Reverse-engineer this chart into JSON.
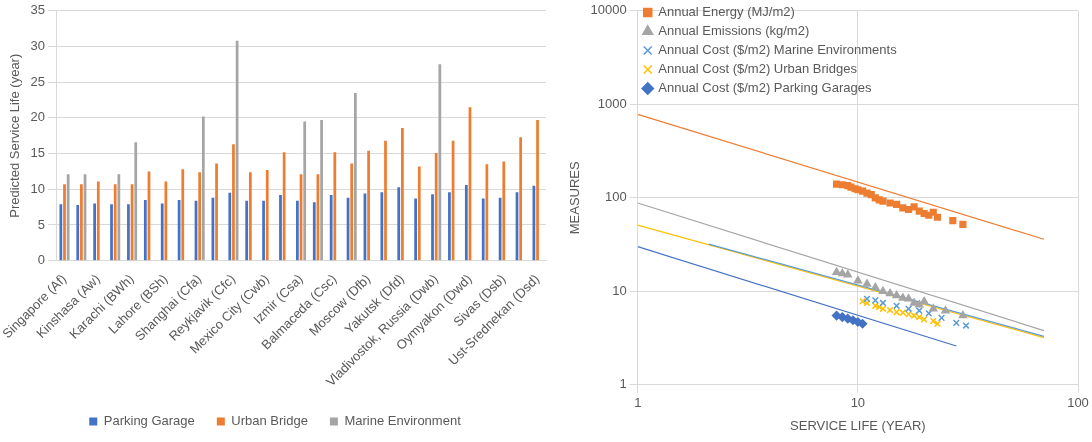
{
  "chart_data": [
    {
      "type": "bar",
      "ylabel": "Predicted Service Life (year)",
      "categories": [
        "Singapore (Af)",
        null,
        "Kinshasa (Aw)",
        null,
        "Karachi (BWh)",
        null,
        "Lahore (BSh)",
        null,
        "Shanghai (Cfa)",
        null,
        "Reykjavik (Cfc)",
        null,
        "Mexico City (Cwb)",
        null,
        "Izmir (Csa)",
        null,
        "Balmaceda (Csc)",
        null,
        "Moscow (Dfb)",
        null,
        "Yakutsk (Dfd)",
        null,
        "Vladivostok, Russia (Dwb)",
        null,
        "Oymyakon (Dwd)",
        null,
        "Sivas (Dsb)",
        null,
        "Ust-Srednekan (Dsd)"
      ],
      "series": [
        {
          "name": "Parking Garage",
          "color": "#4472c4",
          "values": [
            7.9,
            7.8,
            8.0,
            7.9,
            7.9,
            8.5,
            8.0,
            8.5,
            8.4,
            8.8,
            9.5,
            8.4,
            8.4,
            9.2,
            8.4,
            8.2,
            9.2,
            8.8,
            9.4,
            9.6,
            10.3,
            8.7,
            9.3,
            9.6,
            10.6,
            8.7,
            8.8,
            9.6,
            10.5
          ]
        },
        {
          "name": "Urban Bridge",
          "color": "#ed7d31",
          "values": [
            10.7,
            10.7,
            11.1,
            10.7,
            10.7,
            12.5,
            11.1,
            12.8,
            12.4,
            13.6,
            16.3,
            12.4,
            12.7,
            15.2,
            12.1,
            12.1,
            15.2,
            13.6,
            15.4,
            16.8,
            18.6,
            13.2,
            15.1,
            16.8,
            21.5,
            13.5,
            13.9,
            17.3,
            19.7
          ]
        },
        {
          "name": "Marine Environment",
          "color": "#a5a5a5",
          "values": [
            12.1,
            12.1,
            null,
            12.1,
            16.6,
            null,
            null,
            null,
            20.2,
            null,
            30.8,
            null,
            null,
            null,
            19.5,
            19.7,
            null,
            23.5,
            null,
            null,
            null,
            null,
            27.5,
            null,
            null,
            null,
            null,
            null,
            null
          ]
        }
      ],
      "ylim": [
        0,
        35
      ],
      "yticks": [
        0,
        5,
        10,
        15,
        20,
        25,
        30,
        35
      ],
      "grid": "y",
      "legend": "bottom"
    },
    {
      "type": "scatter",
      "xlabel": "SERVICE LIFE (YEAR)",
      "ylabel": "MEASURES",
      "log": "xy",
      "xlim": [
        1,
        100
      ],
      "xticks": [
        1,
        10,
        100
      ],
      "ylim": [
        1,
        10000
      ],
      "yticks": [
        1,
        10,
        100,
        1000,
        10000
      ],
      "grid": true,
      "legend": "top left",
      "series": [
        {
          "name": "Annual Energy (MJ/m2)",
          "color": "#ed7d31",
          "marker": "square",
          "x": [
            8,
            8.5,
            9,
            9.3,
            9.7,
            10,
            10.5,
            11,
            11.5,
            12,
            12.5,
            13,
            14,
            15,
            16,
            17,
            18,
            19,
            20,
            21,
            22,
            23,
            27,
            30
          ],
          "values": [
            140,
            138,
            135,
            130,
            125,
            122,
            118,
            112,
            108,
            100,
            95,
            92,
            88,
            85,
            78,
            75,
            80,
            72,
            68,
            65,
            70,
            62,
            57,
            52
          ]
        },
        {
          "name": "Annual Emissions (kg/m2)",
          "color": "#a5a5a5",
          "marker": "triangle",
          "x": [
            8,
            8.5,
            9,
            10,
            11,
            12,
            13,
            14,
            15,
            16,
            17,
            18,
            19,
            20,
            22,
            25,
            30
          ],
          "values": [
            16,
            15.5,
            15,
            13,
            12,
            11,
            10,
            9.5,
            9,
            8.5,
            8.3,
            7.5,
            7.2,
            7.8,
            6.5,
            6.2,
            5.5
          ]
        },
        {
          "name": "Annual Cost ($/m2) Marine Environments",
          "color": "#5b9bd5",
          "marker": "cross",
          "x": [
            11,
            12,
            13,
            15,
            17,
            19,
            21,
            24,
            28,
            31
          ],
          "values": [
            8.3,
            8,
            7.5,
            7,
            6.5,
            6.2,
            5.8,
            5.2,
            4.6,
            4.3
          ]
        },
        {
          "name": "Annual Cost ($/m2) Urban Bridges",
          "color": "#ffc000",
          "marker": "cross",
          "x": [
            10.5,
            11,
            12,
            12.5,
            13,
            14,
            15,
            16,
            17,
            18,
            19,
            20,
            22,
            23
          ],
          "values": [
            7.8,
            7.5,
            7,
            6.8,
            6.5,
            6.3,
            6,
            5.9,
            5.7,
            5.5,
            5.3,
            5,
            4.8,
            4.5
          ]
        },
        {
          "name": "Annual Cost ($/m2) Parking Garages",
          "color": "#4472c4",
          "marker": "diamond",
          "x": [
            8,
            8.5,
            9,
            9.5,
            10,
            10.5
          ],
          "values": [
            5.5,
            5.3,
            5.1,
            4.9,
            4.7,
            4.5
          ]
        },
        {
          "type": "line",
          "color": "#ed7d31",
          "x": [
            1,
            70
          ],
          "values": [
            780,
            36
          ]
        },
        {
          "type": "line",
          "color": "#a5a5a5",
          "x": [
            1,
            70
          ],
          "values": [
            88,
            3.8
          ]
        },
        {
          "type": "line",
          "color": "#5b9bd5",
          "x": [
            2.1,
            70
          ],
          "values": [
            32,
            3.3
          ]
        },
        {
          "type": "line",
          "color": "#ffc000",
          "x": [
            1,
            70
          ],
          "values": [
            51,
            3.2
          ]
        },
        {
          "type": "line",
          "color": "#4472c4",
          "x": [
            1,
            28
          ],
          "values": [
            30,
            2.6
          ]
        }
      ]
    }
  ]
}
